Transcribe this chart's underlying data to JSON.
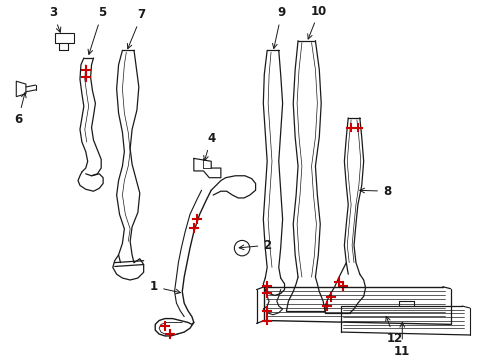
{
  "bg_color": "#ffffff",
  "line_color": "#1a1a1a",
  "red_color": "#cc0000",
  "label_color": "#111111",
  "fig_width": 4.89,
  "fig_height": 3.6,
  "dpi": 100
}
